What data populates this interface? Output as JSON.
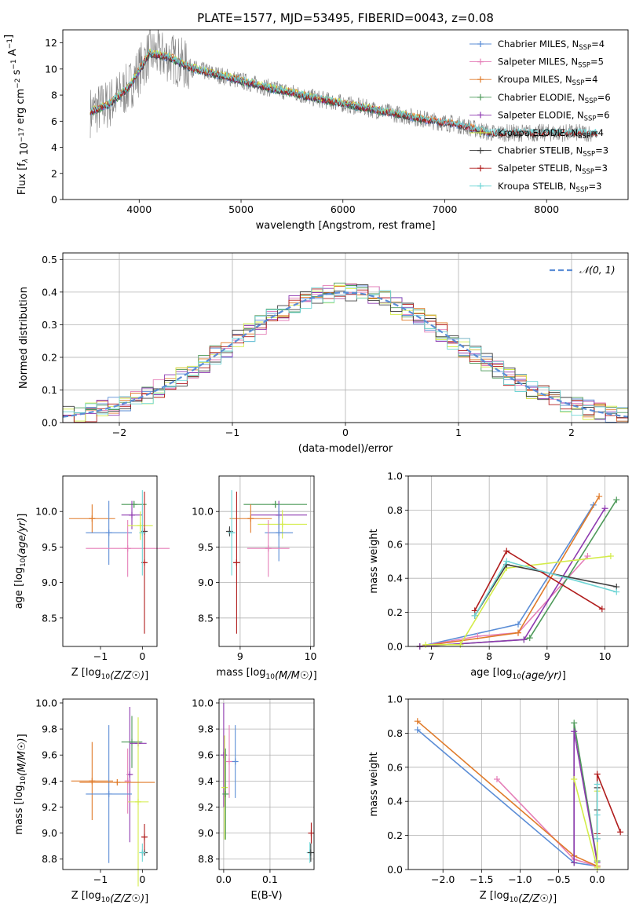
{
  "figure": {
    "title": "PLATE=1577, MJD=53495, FIBERID=0043, z=0.08"
  },
  "colors": {
    "Chabrier MILES": "#5b8dd6",
    "Salpeter MILES": "#e57fb8",
    "Kroupa MILES": "#e07b2a",
    "Chabrier ELODIE": "#4e9a5a",
    "Salpeter ELODIE": "#8e3ab0",
    "Kroupa ELODIE": "#d4ec4a",
    "Chabrier STELIB": "#404040",
    "Salpeter STELIB": "#b01c1c",
    "Kroupa STELIB": "#6fd5d5",
    "data": "#808080",
    "normal": "#5b8dd6"
  },
  "chart_data": [
    {
      "type": "line",
      "title": "PLATE=1577, MJD=53495, FIBERID=0043, z=0.08",
      "xlabel": "wavelength [Angstrom, rest frame]",
      "ylabel": "Flux [f_λ 10^-17 erg cm^-2 s^-1 A^-1]",
      "xlim": [
        3250,
        8800
      ],
      "ylim": [
        0,
        13
      ],
      "xticks": [
        4000,
        5000,
        6000,
        7000,
        8000
      ],
      "yticks": [
        0,
        2,
        4,
        6,
        8,
        10,
        12
      ],
      "grid": false,
      "legend_position": "top-right",
      "spectrum_trend": {
        "x": [
          3520,
          3700,
          3900,
          4100,
          4300,
          4500,
          4700,
          4900,
          5100,
          5300,
          5500,
          5700,
          5900,
          6100,
          6300,
          6500,
          6700,
          6900,
          7100,
          7300,
          7450
        ],
        "y": [
          6.7,
          7.3,
          8.6,
          11.2,
          10.9,
          10.1,
          9.7,
          9.3,
          8.9,
          8.5,
          8.2,
          7.8,
          7.5,
          7.2,
          6.9,
          6.6,
          6.3,
          6.0,
          5.8,
          5.4,
          5.1
        ]
      },
      "series": [
        {
          "name": "Chabrier MILES",
          "nssp": 4,
          "xmax": 7450
        },
        {
          "name": "Salpeter MILES",
          "nssp": 5,
          "xmax": 7450
        },
        {
          "name": "Kroupa MILES",
          "nssp": 4,
          "xmax": 7450
        },
        {
          "name": "Chabrier ELODIE",
          "nssp": 6,
          "xmax": 6800
        },
        {
          "name": "Salpeter ELODIE",
          "nssp": 6,
          "xmax": 6800
        },
        {
          "name": "Kroupa ELODIE",
          "nssp": 4,
          "xmax": 6800
        },
        {
          "name": "Chabrier STELIB",
          "nssp": 3,
          "xmax": 8500
        },
        {
          "name": "Salpeter STELIB",
          "nssp": 3,
          "xmax": 8500
        },
        {
          "name": "Kroupa STELIB",
          "nssp": 3,
          "xmax": 8500
        }
      ]
    },
    {
      "type": "histogram",
      "xlabel": "(data-model)/error",
      "ylabel": "Normed distribution",
      "xlim": [
        -2.5,
        2.5
      ],
      "ylim": [
        0,
        0.52
      ],
      "xticks": [
        -2,
        -1,
        0,
        1,
        2
      ],
      "yticks": [
        0.0,
        0.1,
        0.2,
        0.3,
        0.4,
        0.5
      ],
      "grid": true,
      "legend_position": "top-right",
      "legend": "𝒩(0, 1)",
      "bin_width": 0.1,
      "bin_start": -2.5,
      "normal_curve": {
        "mean": 0,
        "sigma": 1
      }
    },
    {
      "type": "errorbar",
      "xlabel": "Z [log10(Z/Z☉)]",
      "ylabel": "age  [log10(age/yr)]",
      "xlim": [
        -1.9,
        0.35
      ],
      "ylim": [
        8.1,
        10.5
      ],
      "xticks": [
        -1,
        0
      ],
      "yticks": [
        8.5,
        9.0,
        9.5,
        10.0
      ],
      "grid": false,
      "points": [
        {
          "s": "Kroupa MILES",
          "x": -1.2,
          "xerr": 0.55,
          "y": 9.9,
          "yerr": 0.2,
          "y2": 9.0
        },
        {
          "s": "Chabrier MILES",
          "x": -0.8,
          "xerr": 0.55,
          "y": 9.7,
          "yerr": 0.45
        },
        {
          "s": "Salpeter MILES",
          "x": -0.35,
          "xerr": 1.0,
          "y": 9.48,
          "yerr": 0.4
        },
        {
          "s": "Chabrier ELODIE",
          "x": -0.2,
          "xerr": 0.3,
          "y": 10.1,
          "yerr": 0.05
        },
        {
          "s": "Salpeter ELODIE",
          "x": -0.25,
          "xerr": 0.25,
          "y": 9.95,
          "yerr": 0.2
        },
        {
          "s": "Kroupa ELODIE",
          "x": -0.05,
          "xerr": 0.3,
          "y": 9.8,
          "yerr": 0.2
        },
        {
          "s": "Chabrier STELIB",
          "x": 0.05,
          "xerr": 0.05,
          "y": 9.72,
          "yerr": 0.05
        },
        {
          "s": "Salpeter STELIB",
          "x": 0.05,
          "xerr": 0.05,
          "y": 9.28,
          "yerr": 1.0
        },
        {
          "s": "Kroupa STELIB",
          "x": 0.0,
          "xerr": 0.03,
          "y": 9.7,
          "yerr": 0.6
        }
      ]
    },
    {
      "type": "errorbar",
      "xlabel": "mass [log10(M/M☉)]",
      "ylabel": "",
      "xlim": [
        8.7,
        10.05
      ],
      "ylim": [
        8.1,
        10.5
      ],
      "xticks": [
        9,
        10
      ],
      "yticks": [
        8.5,
        9.0,
        9.5,
        10.0
      ],
      "grid": true,
      "points": [
        {
          "s": "Chabrier ELODIE",
          "x": 9.5,
          "xerr": 0.45,
          "y": 10.1,
          "yerr": 0.05
        },
        {
          "s": "Salpeter ELODIE",
          "x": 9.55,
          "xerr": 0.4,
          "y": 9.95,
          "yerr": 0.2
        },
        {
          "s": "Kroupa MILES",
          "x": 9.15,
          "xerr": 0.3,
          "y": 9.9,
          "yerr": 0.2
        },
        {
          "s": "Kroupa ELODIE",
          "x": 9.6,
          "xerr": 0.35,
          "y": 9.82,
          "yerr": 0.2
        },
        {
          "s": "Chabrier MILES",
          "x": 9.55,
          "xerr": 0.2,
          "y": 9.7,
          "yerr": 0.4
        },
        {
          "s": "Salpeter MILES",
          "x": 9.4,
          "xerr": 0.3,
          "y": 9.48,
          "yerr": 0.4
        },
        {
          "s": "Chabrier STELIB",
          "x": 8.85,
          "xerr": 0.05,
          "y": 9.72,
          "yerr": 0.07
        },
        {
          "s": "Salpeter STELIB",
          "x": 8.95,
          "xerr": 0.05,
          "y": 9.28,
          "yerr": 1.0
        },
        {
          "s": "Kroupa STELIB",
          "x": 8.88,
          "xerr": 0.05,
          "y": 9.7,
          "yerr": 0.6
        }
      ]
    },
    {
      "type": "line",
      "xlabel": "age  [log10(age/yr)]",
      "ylabel": "mass weight",
      "xlim": [
        6.6,
        10.4
      ],
      "ylim": [
        0,
        1
      ],
      "xticks": [
        7,
        8,
        9,
        10
      ],
      "yticks": [
        0.0,
        0.2,
        0.4,
        0.6,
        0.8,
        1.0
      ],
      "grid": true,
      "series": [
        {
          "name": "Chabrier MILES",
          "x": [
            6.8,
            8.5,
            9.8
          ],
          "y": [
            0.0,
            0.13,
            0.83
          ]
        },
        {
          "name": "Salpeter MILES",
          "x": [
            6.8,
            7.8,
            8.5,
            9.7
          ],
          "y": [
            0.0,
            0.06,
            0.08,
            0.53
          ]
        },
        {
          "name": "Kroupa MILES",
          "x": [
            6.8,
            8.5,
            9.9
          ],
          "y": [
            0.0,
            0.08,
            0.88
          ]
        },
        {
          "name": "Chabrier ELODIE",
          "x": [
            6.8,
            8.6,
            8.7,
            10.2
          ],
          "y": [
            0.0,
            0.04,
            0.05,
            0.86
          ]
        },
        {
          "name": "Salpeter ELODIE",
          "x": [
            6.8,
            8.6,
            10.0
          ],
          "y": [
            0.0,
            0.04,
            0.81
          ]
        },
        {
          "name": "Kroupa ELODIE",
          "x": [
            6.9,
            7.5,
            8.3,
            10.1
          ],
          "y": [
            0.01,
            0.01,
            0.46,
            0.53
          ]
        },
        {
          "name": "Chabrier STELIB",
          "x": [
            7.75,
            8.3,
            10.2
          ],
          "y": [
            0.18,
            0.48,
            0.35
          ]
        },
        {
          "name": "Salpeter STELIB",
          "x": [
            7.75,
            8.3,
            9.95
          ],
          "y": [
            0.21,
            0.56,
            0.22
          ]
        },
        {
          "name": "Kroupa STELIB",
          "x": [
            7.75,
            8.3,
            10.2
          ],
          "y": [
            0.18,
            0.5,
            0.32
          ]
        }
      ]
    },
    {
      "type": "errorbar",
      "xlabel": "Z [log10(Z/Z☉)]",
      "ylabel": "mass [log10(M/M☉)]",
      "xlim": [
        -1.9,
        0.35
      ],
      "ylim": [
        8.72,
        10.03
      ],
      "xticks": [
        -1,
        0
      ],
      "yticks": [
        8.8,
        9.0,
        9.2,
        9.4,
        9.6,
        9.8,
        10.0
      ],
      "grid": false,
      "points": [
        {
          "s": "Salpeter ELODIE",
          "x": -0.3,
          "xerr": 0.05,
          "y": 9.45,
          "yerr": 0.52
        },
        {
          "s": "Chabrier ELODIE",
          "x": -0.25,
          "xerr": 0.25,
          "y": 9.7,
          "yerr": 0.2
        },
        {
          "s": "Salpeter ELODIE",
          "x": -0.1,
          "xerr": 0.2,
          "y": 9.69,
          "yerr": 0.02
        },
        {
          "s": "Kroupa ELODIE",
          "x": -0.1,
          "xerr": 0.25,
          "y": 9.24,
          "yerr": 0.65
        },
        {
          "s": "Salpeter MILES",
          "x": -0.35,
          "xerr": 0.05,
          "y": 9.4,
          "yerr": 0.25
        },
        {
          "s": "Kroupa MILES",
          "x": -1.2,
          "xerr": 0.5,
          "y": 9.4,
          "yerr": 0.3
        },
        {
          "s": "Chabrier MILES",
          "x": -0.8,
          "xerr": 0.55,
          "y": 9.3,
          "yerr": 0.53
        },
        {
          "s": "Kroupa MILES",
          "x": -0.6,
          "xerr": 0.9,
          "y": 9.39,
          "yerr": 0.01
        },
        {
          "s": "Chabrier STELIB",
          "x": 0.05,
          "xerr": 0.05,
          "y": 8.85,
          "yerr": 0.01
        },
        {
          "s": "Salpeter STELIB",
          "x": 0.05,
          "xerr": 0.05,
          "y": 8.97,
          "yerr": 0.1
        },
        {
          "s": "Kroupa STELIB",
          "x": 0.0,
          "xerr": 0.05,
          "y": 8.85,
          "yerr": 0.07
        }
      ]
    },
    {
      "type": "errorbar",
      "xlabel": "E(B-V)",
      "ylabel": "",
      "xlim": [
        -0.01,
        0.195
      ],
      "ylim": [
        8.72,
        10.03
      ],
      "xticks": [
        0.0,
        0.1
      ],
      "yticks": [
        8.8,
        9.0,
        9.2,
        9.4,
        9.6,
        9.8,
        10.0
      ],
      "grid": true,
      "points": [
        {
          "s": "Salpeter ELODIE",
          "x": 0.0,
          "y": 9.6,
          "yerr": 0.4
        },
        {
          "s": "Kroupa ELODIE",
          "x": 0.002,
          "y": 9.35,
          "yerr": 0.4
        },
        {
          "s": "Chabrier ELODIE",
          "x": 0.004,
          "y": 9.3,
          "yerr": 0.35
        },
        {
          "s": "Salpeter MILES",
          "x": 0.012,
          "y": 9.55,
          "yerr": 0.28
        },
        {
          "s": "Chabrier MILES",
          "x": 0.025,
          "y": 9.55,
          "yerr": 0.28
        },
        {
          "s": "Kroupa STELIB",
          "x": 0.186,
          "y": 8.85,
          "yerr": 0.08
        },
        {
          "s": "Chabrier STELIB",
          "x": 0.188,
          "y": 8.85,
          "yerr": 0.07
        },
        {
          "s": "Salpeter STELIB",
          "x": 0.189,
          "y": 9.0,
          "yerr": 0.08
        }
      ]
    },
    {
      "type": "line",
      "xlabel": "Z [log10(Z/Z☉)]",
      "ylabel": "mass weight",
      "xlim": [
        -2.45,
        0.4
      ],
      "ylim": [
        0,
        1
      ],
      "xticks": [
        -2.0,
        -1.5,
        -1.0,
        -0.5,
        0.0
      ],
      "yticks": [
        0.0,
        0.2,
        0.4,
        0.6,
        0.8,
        1.0
      ],
      "grid": true,
      "series": [
        {
          "name": "Chabrier MILES",
          "x": [
            -2.33,
            -0.3,
            0.0
          ],
          "y": [
            0.82,
            0.04,
            0.02
          ]
        },
        {
          "name": "Salpeter MILES",
          "x": [
            -1.3,
            -0.3,
            0.0
          ],
          "y": [
            0.53,
            0.06,
            0.02
          ]
        },
        {
          "name": "Kroupa MILES",
          "x": [
            -2.33,
            -0.3,
            0.0
          ],
          "y": [
            0.87,
            0.08,
            0.02
          ]
        },
        {
          "name": "Chabrier ELODIE",
          "x": [
            -0.3,
            -0.3,
            0.0
          ],
          "y": [
            0.04,
            0.86,
            0.05
          ]
        },
        {
          "name": "Salpeter ELODIE",
          "x": [
            -0.3,
            -0.3,
            0.0
          ],
          "y": [
            0.04,
            0.81,
            0.04
          ]
        },
        {
          "name": "Kroupa ELODIE",
          "x": [
            -0.3,
            0.0,
            0.0
          ],
          "y": [
            0.53,
            0.01,
            0.46
          ]
        },
        {
          "name": "Chabrier STELIB",
          "x": [
            0.0,
            0.0,
            0.0
          ],
          "y": [
            0.18,
            0.35,
            0.48
          ]
        },
        {
          "name": "Salpeter STELIB",
          "x": [
            0.0,
            0.0,
            0.3
          ],
          "y": [
            0.21,
            0.56,
            0.22
          ]
        },
        {
          "name": "Kroupa STELIB",
          "x": [
            0.0,
            0.0,
            0.0
          ],
          "y": [
            0.18,
            0.32,
            0.5
          ]
        }
      ]
    }
  ]
}
